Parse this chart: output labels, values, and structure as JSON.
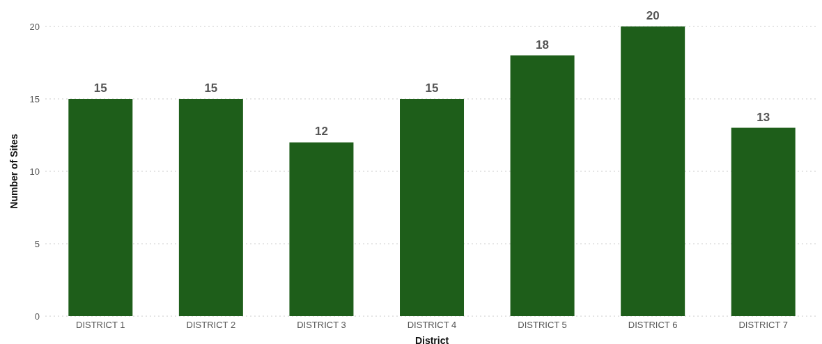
{
  "chart_data": {
    "type": "bar",
    "xlabel": "District",
    "ylabel": "Number of Sites",
    "categories": [
      "DISTRICT 1",
      "DISTRICT 2",
      "DISTRICT 3",
      "DISTRICT 4",
      "DISTRICT 5",
      "DISTRICT 6",
      "DISTRICT 7"
    ],
    "values": [
      15,
      15,
      12,
      15,
      18,
      20,
      13
    ],
    "color": "#1e5e1a",
    "ylim": [
      0,
      20
    ],
    "yticks": [
      0,
      5,
      10,
      15,
      20
    ],
    "grid": "y",
    "data_labels": true
  }
}
